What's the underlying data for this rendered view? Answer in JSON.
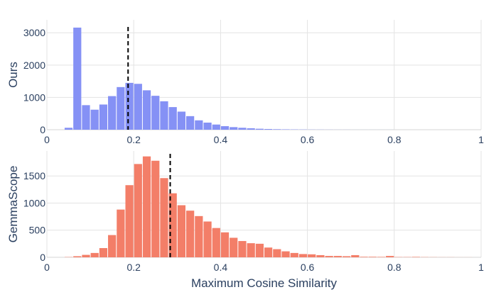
{
  "chart_data": {
    "type": "histogram",
    "xlabel": "Maximum Cosine Similarity",
    "xlim": [
      0,
      1
    ],
    "x_ticks": [
      0,
      0.2,
      0.4,
      0.6,
      0.8,
      1
    ],
    "x_tick_labels": [
      "0",
      "0.2",
      "0.4",
      "0.6",
      "0.8",
      "1"
    ],
    "bin_width": 0.02,
    "bin_start": 0.04,
    "panels": [
      {
        "name": "ours",
        "ylabel": "Ours",
        "color": "#8591f5",
        "ylim": [
          0,
          3400
        ],
        "y_ticks": [
          0,
          1000,
          2000,
          3000
        ],
        "y_tick_labels": [
          "0",
          "1000",
          "2000",
          "3000"
        ],
        "mean_line": 0.187,
        "counts": [
          60,
          3160,
          760,
          620,
          780,
          1040,
          1320,
          1450,
          1420,
          1220,
          1050,
          880,
          700,
          560,
          420,
          290,
          220,
          160,
          110,
          80,
          60,
          45,
          30,
          22,
          16,
          12,
          9,
          7,
          5,
          4,
          3,
          2,
          2,
          1,
          1,
          1,
          1,
          1
        ]
      },
      {
        "name": "gemmascope",
        "ylabel": "GemmaScope",
        "color": "#f37e68",
        "ylim": [
          0,
          1960
        ],
        "y_ticks": [
          0,
          500,
          1000,
          1500
        ],
        "y_tick_labels": [
          "0",
          "500",
          "1000",
          "1500"
        ],
        "mean_line": 0.284,
        "counts": [
          5,
          20,
          45,
          80,
          170,
          410,
          880,
          1330,
          1720,
          1860,
          1780,
          1460,
          1180,
          960,
          860,
          760,
          660,
          540,
          460,
          360,
          300,
          260,
          250,
          180,
          150,
          110,
          80,
          60,
          55,
          40,
          25,
          25,
          20,
          40,
          10,
          10,
          8,
          25,
          5,
          5,
          8,
          4,
          3,
          2,
          2,
          1,
          1
        ]
      }
    ]
  }
}
